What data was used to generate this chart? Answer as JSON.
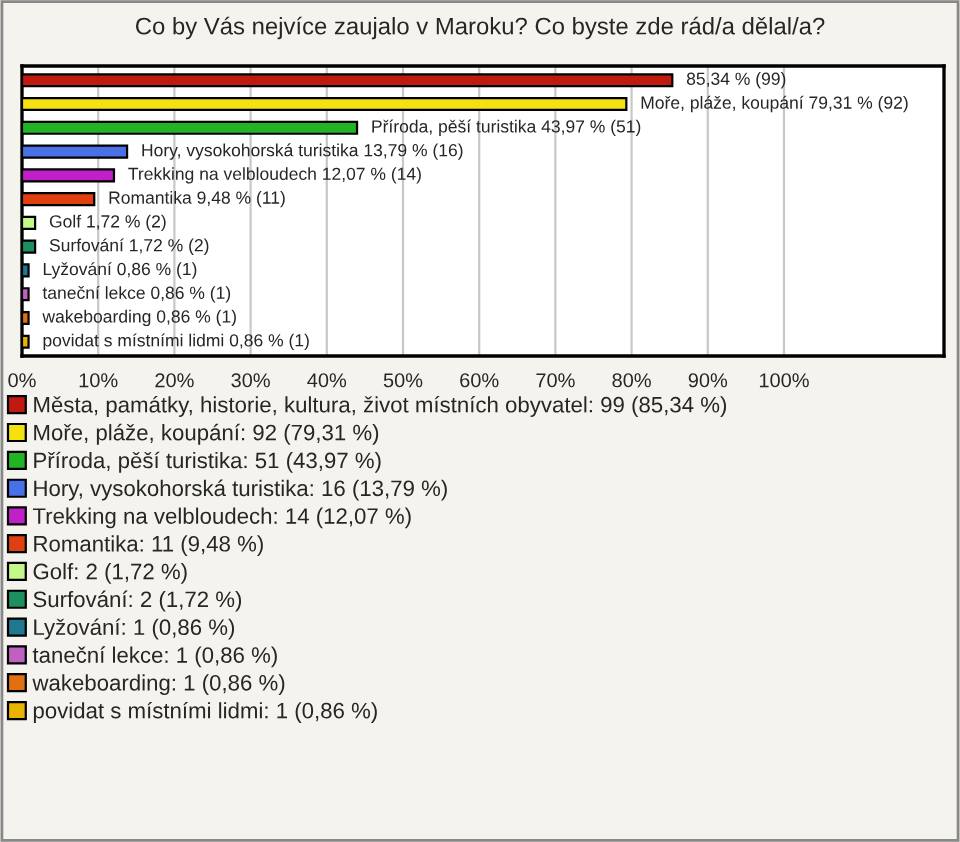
{
  "chart_data": {
    "type": "bar",
    "orientation": "horizontal",
    "title": "Co by Vás nejvíce zaujalo v Maroku? Co byste zde rád/a dělal/a?",
    "categories": [
      null,
      null,
      null,
      null,
      null,
      null,
      null,
      null,
      null,
      null,
      null,
      null
    ],
    "series": [
      {
        "name": "Města, památky, historie, kultura, život místních obyvatel: 99 (85,34 %)",
        "color": "#c01a10",
        "values": [
          85.34,
          null,
          null,
          null,
          null,
          null,
          null,
          null,
          null,
          null,
          null,
          null
        ],
        "value_labels": [
          "85,34 % (99)",
          null,
          null,
          null,
          null,
          null,
          null,
          null,
          null,
          null,
          null,
          null
        ]
      },
      {
        "name": "Moře, pláže, koupání: 92 (79,31 %)",
        "color": "#f5e010",
        "values": [
          null,
          79.31,
          null,
          null,
          null,
          null,
          null,
          null,
          null,
          null,
          null,
          null
        ],
        "value_labels": [
          null,
          "Moře, pláže, koupání 79,31 % (92)",
          null,
          null,
          null,
          null,
          null,
          null,
          null,
          null,
          null,
          null
        ]
      },
      {
        "name": "Příroda, pěší turistika: 51 (43,97 %)",
        "color": "#22b424",
        "values": [
          null,
          null,
          43.97,
          null,
          null,
          null,
          null,
          null,
          null,
          null,
          null,
          null
        ],
        "value_labels": [
          null,
          null,
          "Příroda, pěší turistika 43,97 % (51)",
          null,
          null,
          null,
          null,
          null,
          null,
          null,
          null,
          null
        ]
      },
      {
        "name": "Hory, vysokohorská turistika: 16 (13,79 %)",
        "color": "#4a70e8",
        "values": [
          null,
          null,
          null,
          13.79,
          null,
          null,
          null,
          null,
          null,
          null,
          null,
          null
        ],
        "value_labels": [
          null,
          null,
          null,
          "Hory, vysokohorská turistika 13,79 % (16)",
          null,
          null,
          null,
          null,
          null,
          null,
          null,
          null
        ]
      },
      {
        "name": "Trekking na velbloudech: 14 (12,07 %)",
        "color": "#c020c8",
        "values": [
          null,
          null,
          null,
          null,
          12.07,
          null,
          null,
          null,
          null,
          null,
          null,
          null
        ],
        "value_labels": [
          null,
          null,
          null,
          null,
          "Trekking na velbloudech 12,07 % (14)",
          null,
          null,
          null,
          null,
          null,
          null,
          null
        ]
      },
      {
        "name": "Romantika: 11 (9,48 %)",
        "color": "#e04010",
        "values": [
          null,
          null,
          null,
          null,
          null,
          9.48,
          null,
          null,
          null,
          null,
          null,
          null
        ],
        "value_labels": [
          null,
          null,
          null,
          null,
          null,
          "Romantika 9,48 % (11)",
          null,
          null,
          null,
          null,
          null,
          null
        ]
      },
      {
        "name": "Golf: 2 (1,72 %)",
        "color": "#c4f888",
        "values": [
          null,
          null,
          null,
          null,
          null,
          null,
          1.72,
          null,
          null,
          null,
          null,
          null
        ],
        "value_labels": [
          null,
          null,
          null,
          null,
          null,
          null,
          "Golf 1,72 % (2)",
          null,
          null,
          null,
          null,
          null
        ]
      },
      {
        "name": "Surfování: 2 (1,72 %)",
        "color": "#1e9060",
        "values": [
          null,
          null,
          null,
          null,
          null,
          null,
          null,
          1.72,
          null,
          null,
          null,
          null
        ],
        "value_labels": [
          null,
          null,
          null,
          null,
          null,
          null,
          null,
          "Surfování 1,72 % (2)",
          null,
          null,
          null,
          null
        ]
      },
      {
        "name": "Lyžování: 1 (0,86 %)",
        "color": "#207890",
        "values": [
          null,
          null,
          null,
          null,
          null,
          null,
          null,
          null,
          0.86,
          null,
          null,
          null
        ],
        "value_labels": [
          null,
          null,
          null,
          null,
          null,
          null,
          null,
          null,
          "Lyžování 0,86 % (1)",
          null,
          null,
          null
        ]
      },
      {
        "name": "taneční lekce: 1 (0,86 %)",
        "color": "#c060c0",
        "values": [
          null,
          null,
          null,
          null,
          null,
          null,
          null,
          null,
          null,
          0.86,
          null,
          null
        ],
        "value_labels": [
          null,
          null,
          null,
          null,
          null,
          null,
          null,
          null,
          null,
          "taneční lekce 0,86 % (1)",
          null,
          null
        ]
      },
      {
        "name": "wakeboarding: 1 (0,86 %)",
        "color": "#e07010",
        "values": [
          null,
          null,
          null,
          null,
          null,
          null,
          null,
          null,
          null,
          null,
          0.86,
          null
        ],
        "value_labels": [
          null,
          null,
          null,
          null,
          null,
          null,
          null,
          null,
          null,
          null,
          "wakeboarding 0,86 % (1)",
          null
        ]
      },
      {
        "name": "povidat s místními lidmi: 1 (0,86 %)",
        "color": "#e8b400",
        "values": [
          null,
          null,
          null,
          null,
          null,
          null,
          null,
          null,
          null,
          null,
          null,
          0.86
        ],
        "value_labels": [
          null,
          null,
          null,
          null,
          null,
          null,
          null,
          null,
          null,
          null,
          null,
          "povidat s místními lidmi 0,86 % (1)"
        ]
      }
    ],
    "xlim": [
      0,
      121
    ],
    "xticks": [
      {
        "value": 0,
        "label": "0%"
      },
      {
        "value": 10,
        "label": "10%"
      },
      {
        "value": 20,
        "label": "20%"
      },
      {
        "value": 30,
        "label": "30%"
      },
      {
        "value": 40,
        "label": "40%"
      },
      {
        "value": 50,
        "label": "50%"
      },
      {
        "value": 60,
        "label": "60%"
      },
      {
        "value": 70,
        "label": "70%"
      },
      {
        "value": 80,
        "label": "80%"
      },
      {
        "value": 90,
        "label": "90%"
      },
      {
        "value": 100,
        "label": "100%"
      }
    ],
    "grid": "x",
    "legend": "bottom"
  }
}
